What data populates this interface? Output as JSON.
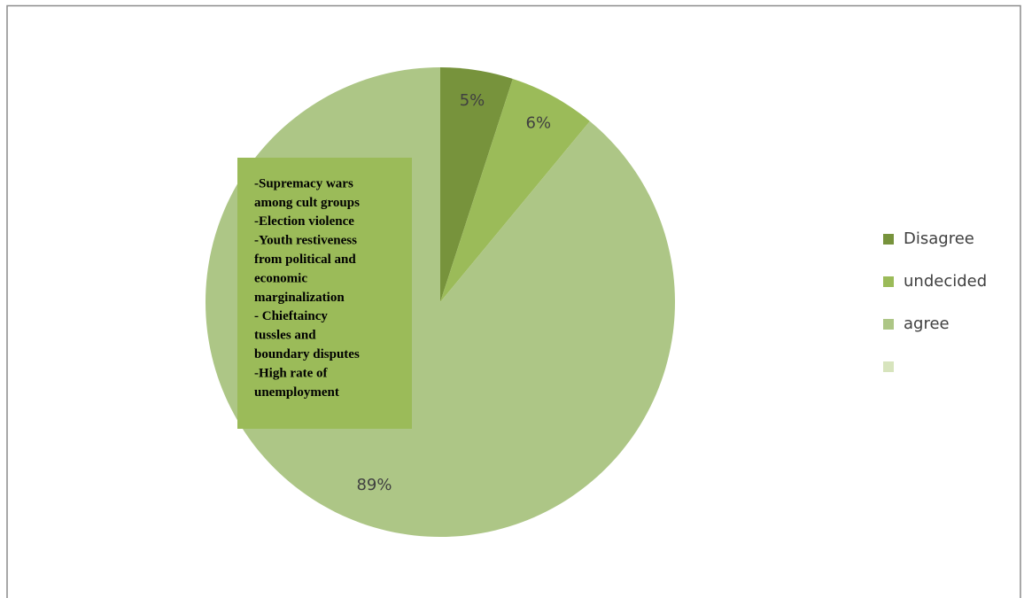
{
  "chart_data": {
    "type": "pie",
    "categories": [
      "Disagree",
      "undecided",
      "agree",
      null
    ],
    "values": [
      5,
      6,
      89,
      0
    ],
    "value_labels": [
      "5%",
      "6%",
      "89%",
      null
    ],
    "colors": [
      "#77933c",
      "#9bbb59",
      "#adc686",
      "#d7e4bd"
    ],
    "legend": "right",
    "annotation": {
      "color": "#9bbb59",
      "lines": [
        "-Supremacy wars",
        "among cult groups",
        "-Election violence",
        "-Youth restiveness",
        "from political and",
        "economic",
        "marginalization",
        "- Chieftaincy",
        "tussles and",
        "boundary disputes",
        "-High rate of",
        "unemployment"
      ]
    }
  }
}
